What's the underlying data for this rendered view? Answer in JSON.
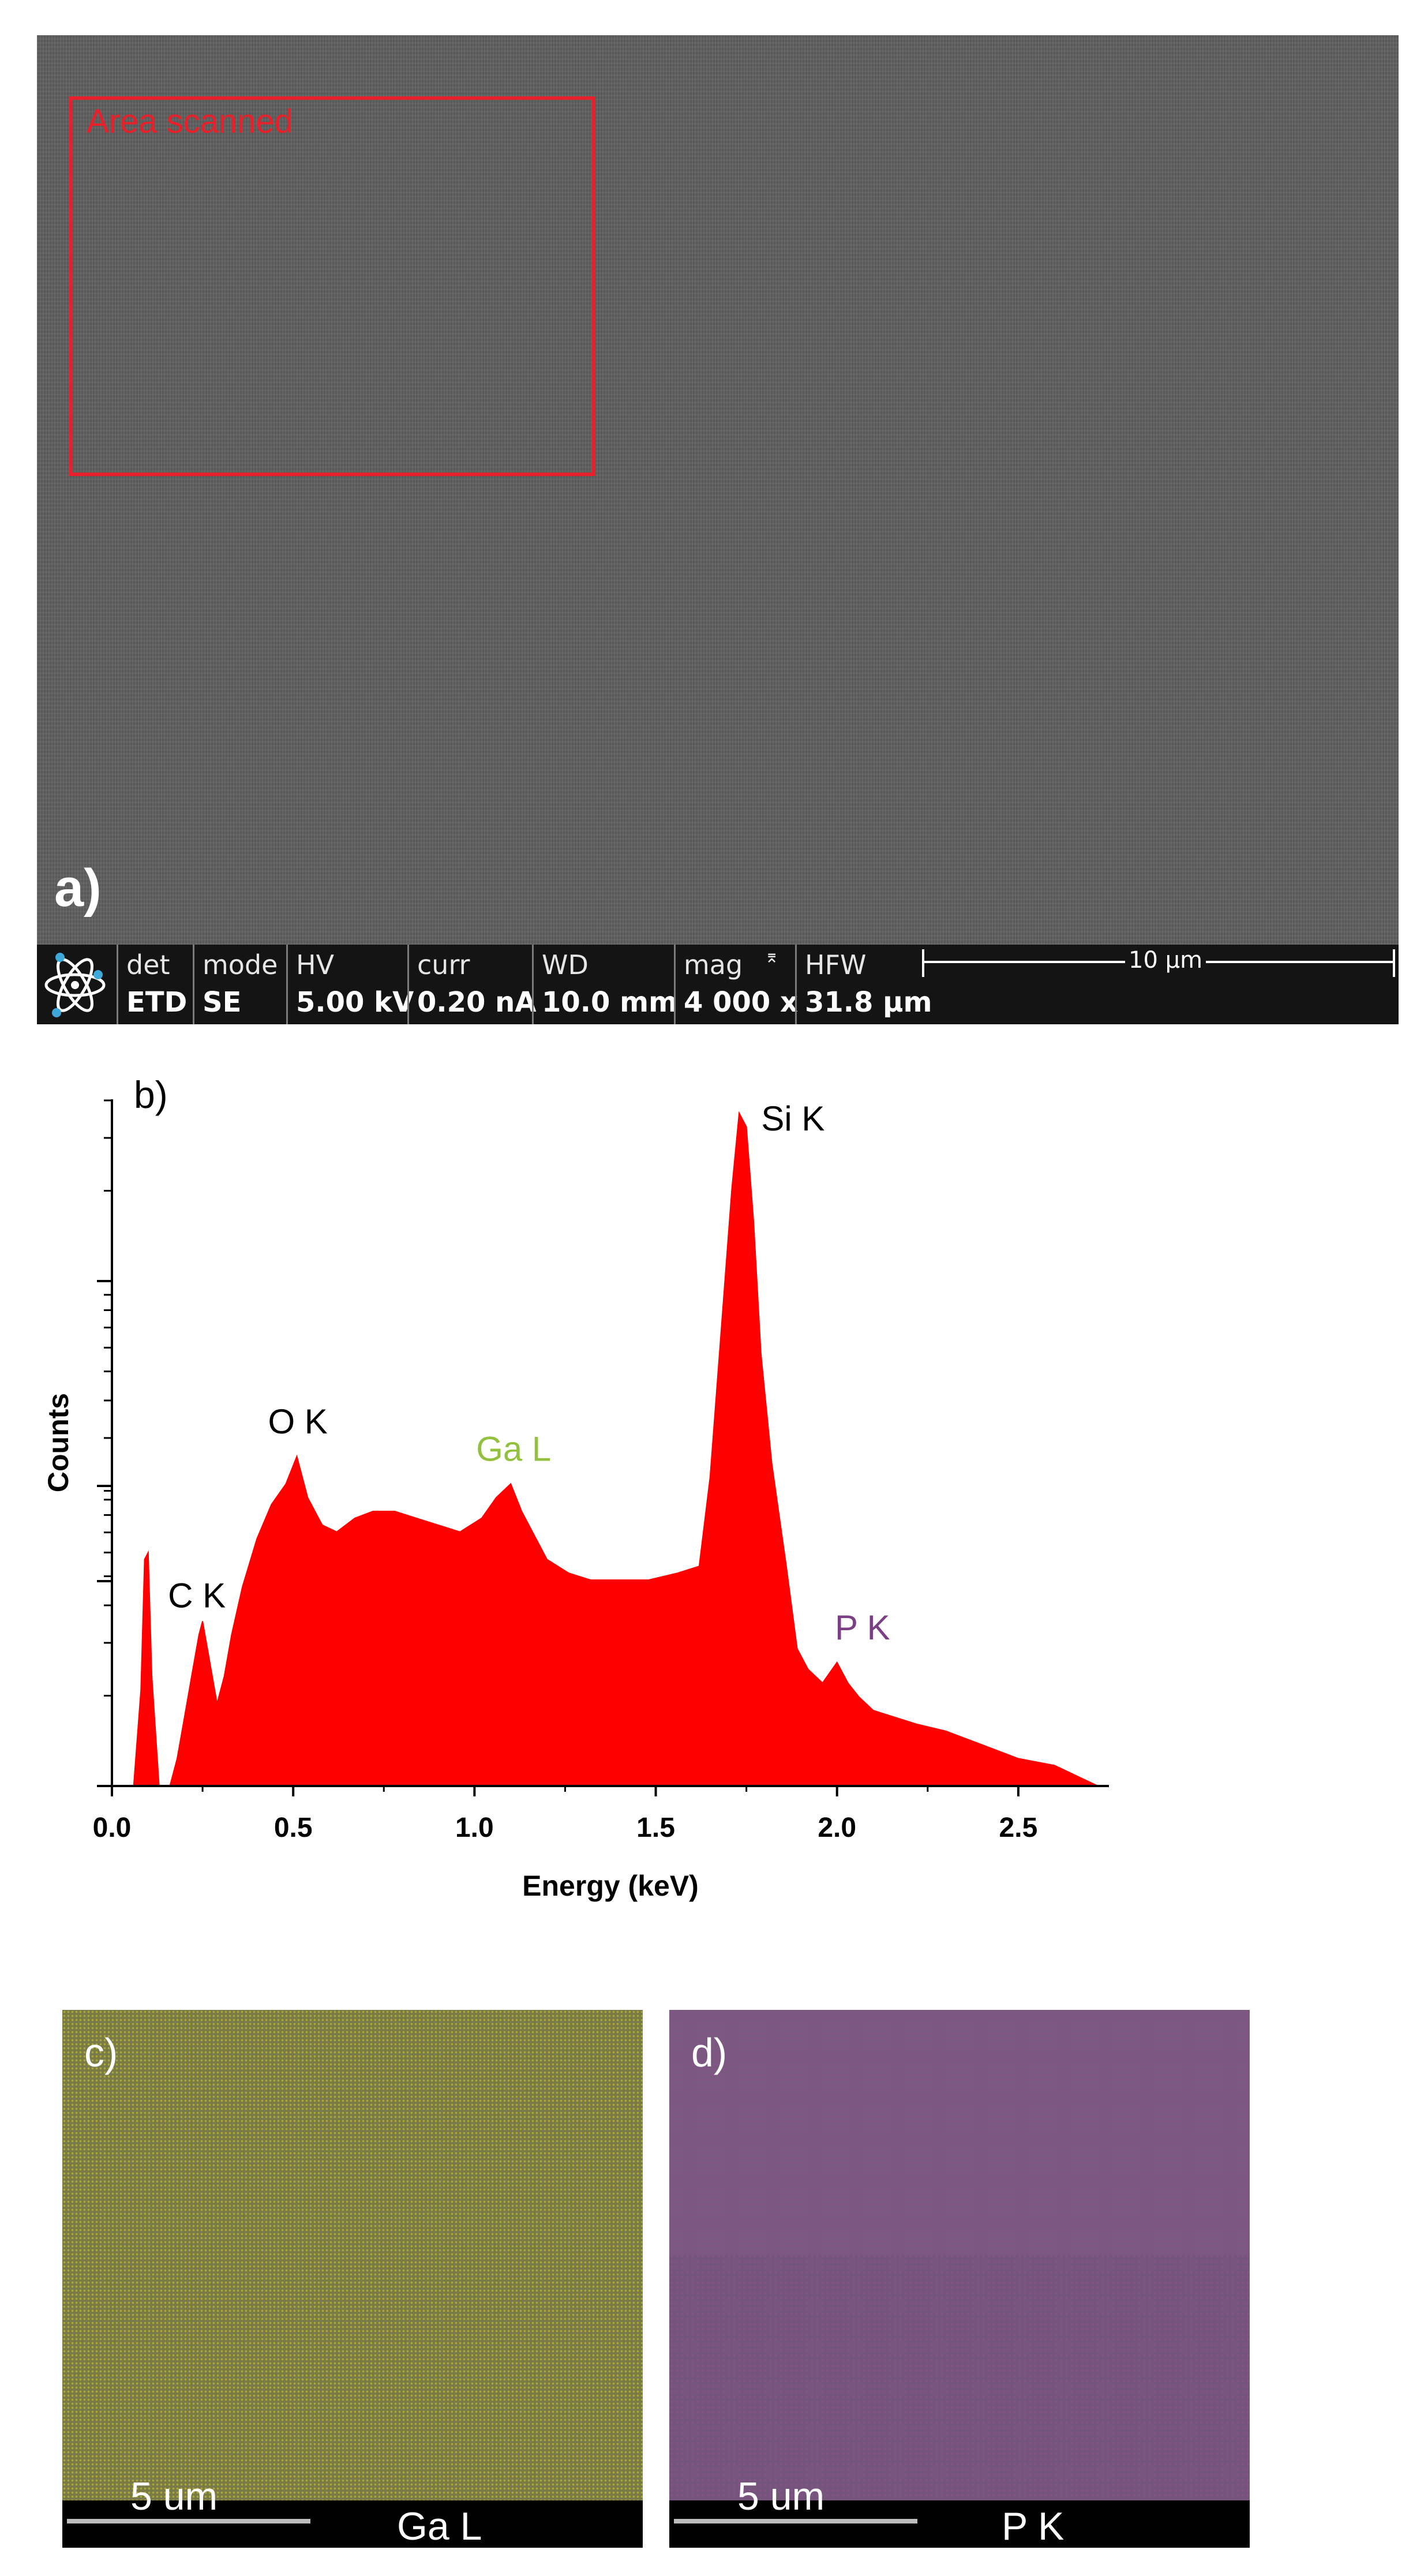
{
  "panel_a": {
    "label": "a)",
    "scan_region_label": "Area scanned",
    "databar": {
      "columns": [
        {
          "head": "det",
          "value": "ETD"
        },
        {
          "head": "mode",
          "value": "SE"
        },
        {
          "head": "HV",
          "value": "5.00 kV"
        },
        {
          "head": "curr",
          "value": "0.20 nA"
        },
        {
          "head": "WD",
          "value": "10.0 mm"
        },
        {
          "head": "mag",
          "value": "4 000 x"
        },
        {
          "head": "HFW",
          "value": "31.8 µm"
        }
      ],
      "scale_bar_label": "10 µm",
      "logo_icon": "atom-icon"
    }
  },
  "chart_data": {
    "type": "area",
    "panel_label": "b)",
    "xlabel": "Energy (keV)",
    "ylabel": "Counts",
    "xlim": [
      0.0,
      2.75
    ],
    "ylim": [
      0,
      100
    ],
    "x_ticks": [
      "0.0",
      "0.5",
      "1.0",
      "1.5",
      "2.0",
      "2.5"
    ],
    "y_scale": "log",
    "color": "#ff0000",
    "series": [
      {
        "x": [
          0.0,
          0.06,
          0.08,
          0.09,
          0.1,
          0.11,
          0.13,
          0.16,
          0.18,
          0.2,
          0.22,
          0.24,
          0.25,
          0.27,
          0.29,
          0.31,
          0.33,
          0.36,
          0.4,
          0.44,
          0.48,
          0.51,
          0.54,
          0.58,
          0.62,
          0.67,
          0.72,
          0.78,
          0.84,
          0.9,
          0.96,
          1.02,
          1.06,
          1.1,
          1.13,
          1.16,
          1.2,
          1.26,
          1.32,
          1.4,
          1.48,
          1.56,
          1.62,
          1.65,
          1.68,
          1.71,
          1.73,
          1.75,
          1.77,
          1.79,
          1.82,
          1.86,
          1.89,
          1.92,
          1.96,
          2.0,
          2.03,
          2.06,
          2.1,
          2.16,
          2.22,
          2.3,
          2.4,
          2.5,
          2.6,
          2.68,
          2.72
        ],
        "y": [
          0,
          0,
          14,
          33,
          34,
          16,
          0,
          0,
          4,
          10,
          16,
          22,
          24,
          18,
          12,
          16,
          22,
          29,
          36,
          41,
          44,
          48,
          42,
          38,
          37,
          39,
          40,
          40,
          39,
          38,
          37,
          39,
          42,
          44,
          40,
          37,
          33,
          31,
          30,
          30,
          30,
          31,
          32,
          45,
          66,
          87,
          98,
          96,
          82,
          63,
          47,
          32,
          20,
          17,
          15,
          18,
          15,
          13,
          11,
          10,
          9,
          8,
          6,
          4,
          3,
          1,
          0
        ]
      }
    ],
    "annotations": [
      {
        "text": "C K",
        "x": 0.25,
        "y": 24,
        "color": "#000000"
      },
      {
        "text": "O K",
        "x": 0.51,
        "y": 48,
        "color": "#000000"
      },
      {
        "text": "Ga L",
        "x": 1.1,
        "y": 44,
        "color": "#92c13e"
      },
      {
        "text": "Si K",
        "x": 1.74,
        "y": 98,
        "color": "#000000"
      },
      {
        "text": "P K",
        "x": 2.01,
        "y": 18,
        "color": "#7b3f86"
      }
    ]
  },
  "panel_c": {
    "label": "c)",
    "scale_label": "5 um",
    "element": "Ga L",
    "map_color": "#c8c832"
  },
  "panel_d": {
    "label": "d)",
    "scale_label": "5 um",
    "element": "P K",
    "map_color": "#8c5a8c"
  }
}
